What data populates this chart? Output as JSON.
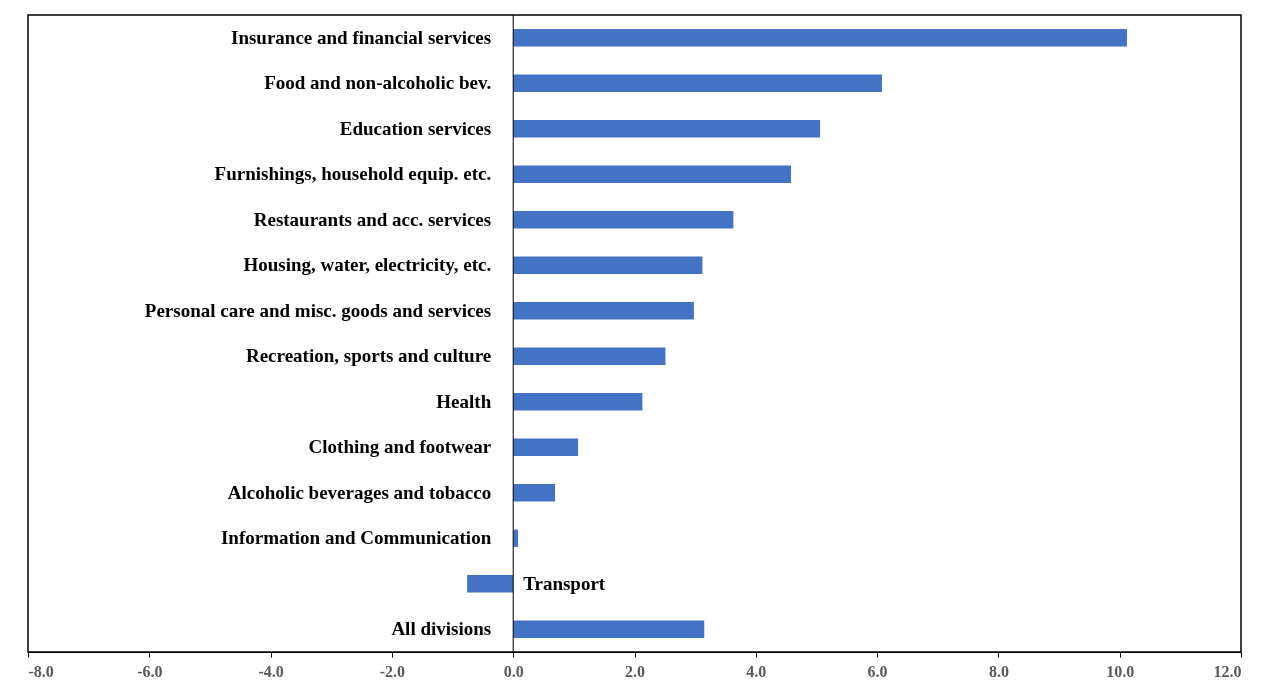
{
  "chart_data": {
    "type": "bar",
    "orientation": "horizontal",
    "categories": [
      "Insurance and financial services",
      "Food and non-alcoholic bev.",
      "Education services",
      "Furnishings, household equip. etc.",
      "Restaurants and acc. services",
      "Housing, water, electricity, etc.",
      "Personal care and misc. goods and services",
      "Recreation, sports and culture",
      "Health",
      "Clothing and footwear",
      "Alcoholic beverages and tobacco",
      "Information and Communication",
      "Transport",
      "All divisions"
    ],
    "values": [
      10.12,
      6.08,
      5.06,
      4.58,
      3.63,
      3.12,
      2.98,
      2.51,
      2.13,
      1.07,
      0.69,
      0.08,
      -0.76,
      3.15
    ],
    "color": "#4472c4",
    "xlim": [
      -8,
      12
    ],
    "xticks": [
      {
        "value": -8,
        "label": "-8.0"
      },
      {
        "value": -6,
        "label": "-6.0"
      },
      {
        "value": -4,
        "label": "-4.0"
      },
      {
        "value": -2,
        "label": "-2.0"
      },
      {
        "value": 0,
        "label": "0.0"
      },
      {
        "value": 2,
        "label": "2.0"
      },
      {
        "value": 4,
        "label": "4.0"
      },
      {
        "value": 6,
        "label": "6.0"
      },
      {
        "value": 8,
        "label": "8.0"
      },
      {
        "value": 10,
        "label": "10.0"
      },
      {
        "value": 12,
        "label": "12.0"
      }
    ],
    "grid": false
  }
}
